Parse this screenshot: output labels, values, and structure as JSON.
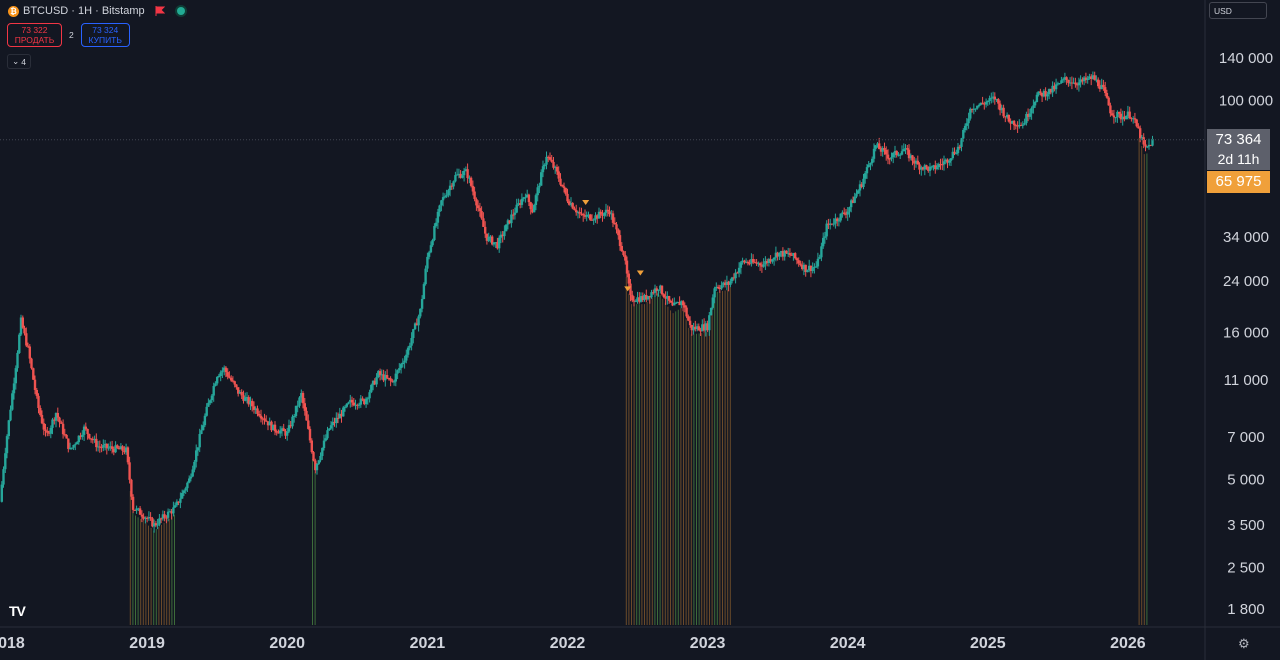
{
  "header": {
    "symbol": "BTCUSD · 1H · Bitstamp",
    "coin_icon": "bitcoin-icon",
    "flag_icon": "red-flag-icon",
    "status_icon": "market-status-dot-icon",
    "sell_price": "73 322",
    "sell_label": "ПРОДАТЬ",
    "spread": "2",
    "buy_price": "73 324",
    "buy_label": "КУПИТЬ",
    "indicators_count": "4",
    "currency": "USD"
  },
  "price_labels": {
    "current": "73 364",
    "countdown": "2d 11h",
    "alert": "65 975"
  },
  "colors": {
    "background": "#131722",
    "up": "#26a69a",
    "down": "#ef5350",
    "current_price_label": "#5d606b",
    "alert_label": "#f0a03a"
  },
  "chart_data": {
    "type": "candlestick",
    "title": "BTCUSD · 1H · Bitstamp",
    "y_scale": "log",
    "ylim": [
      1500,
      200000
    ],
    "xlim": [
      2017.95,
      2026.55
    ],
    "y_ticks": [
      {
        "value": 140000,
        "label": "140 000"
      },
      {
        "value": 100000,
        "label": "100 000"
      },
      {
        "value": 34000,
        "label": "34 000"
      },
      {
        "value": 24000,
        "label": "24 000"
      },
      {
        "value": 16000,
        "label": "16 000"
      },
      {
        "value": 11000,
        "label": "11 000"
      },
      {
        "value": 7000,
        "label": "7 000"
      },
      {
        "value": 5000,
        "label": "5 000"
      },
      {
        "value": 3500,
        "label": "3 500"
      },
      {
        "value": 2500,
        "label": "2 500"
      },
      {
        "value": 1800,
        "label": "1 800"
      }
    ],
    "x_ticks": [
      {
        "value": 2018,
        "label": "2018"
      },
      {
        "value": 2019,
        "label": "2019"
      },
      {
        "value": 2020,
        "label": "2020"
      },
      {
        "value": 2021,
        "label": "2021"
      },
      {
        "value": 2022,
        "label": "2022"
      },
      {
        "value": 2023,
        "label": "2023"
      },
      {
        "value": 2024,
        "label": "2024"
      },
      {
        "value": 2025,
        "label": "2025"
      },
      {
        "value": 2026,
        "label": "2026"
      }
    ],
    "price_path": [
      [
        2017.95,
        4200
      ],
      [
        2017.99,
        6500
      ],
      [
        2018.05,
        11000
      ],
      [
        2018.1,
        17500
      ],
      [
        2018.15,
        14000
      ],
      [
        2018.22,
        9000
      ],
      [
        2018.28,
        7000
      ],
      [
        2018.35,
        8500
      ],
      [
        2018.45,
        6300
      ],
      [
        2018.55,
        7500
      ],
      [
        2018.65,
        6500
      ],
      [
        2018.75,
        6400
      ],
      [
        2018.85,
        6300
      ],
      [
        2018.9,
        4000
      ],
      [
        2018.97,
        3800
      ],
      [
        2019.05,
        3500
      ],
      [
        2019.2,
        4000
      ],
      [
        2019.3,
        5000
      ],
      [
        2019.42,
        8500
      ],
      [
        2019.5,
        11500
      ],
      [
        2019.55,
        12000
      ],
      [
        2019.65,
        10000
      ],
      [
        2019.8,
        8500
      ],
      [
        2019.9,
        7500
      ],
      [
        2020.0,
        7200
      ],
      [
        2020.1,
        9800
      ],
      [
        2020.2,
        5500
      ],
      [
        2020.3,
        7500
      ],
      [
        2020.45,
        9200
      ],
      [
        2020.55,
        9300
      ],
      [
        2020.65,
        11500
      ],
      [
        2020.75,
        10800
      ],
      [
        2020.85,
        13500
      ],
      [
        2020.95,
        19000
      ],
      [
        2021.0,
        29000
      ],
      [
        2021.1,
        45000
      ],
      [
        2021.2,
        55000
      ],
      [
        2021.28,
        57000
      ],
      [
        2021.35,
        45000
      ],
      [
        2021.42,
        34000
      ],
      [
        2021.5,
        32000
      ],
      [
        2021.6,
        40000
      ],
      [
        2021.7,
        48000
      ],
      [
        2021.75,
        42000
      ],
      [
        2021.85,
        65000
      ],
      [
        2021.92,
        57000
      ],
      [
        2022.0,
        46000
      ],
      [
        2022.1,
        40000
      ],
      [
        2022.2,
        40000
      ],
      [
        2022.3,
        42000
      ],
      [
        2022.4,
        30000
      ],
      [
        2022.45,
        21000
      ],
      [
        2022.55,
        21000
      ],
      [
        2022.65,
        23000
      ],
      [
        2022.75,
        19500
      ],
      [
        2022.82,
        20500
      ],
      [
        2022.88,
        16500
      ],
      [
        2023.0,
        16800
      ],
      [
        2023.05,
        23000
      ],
      [
        2023.15,
        23500
      ],
      [
        2023.25,
        28000
      ],
      [
        2023.4,
        27500
      ],
      [
        2023.5,
        30000
      ],
      [
        2023.6,
        29500
      ],
      [
        2023.7,
        26500
      ],
      [
        2023.78,
        27000
      ],
      [
        2023.85,
        37000
      ],
      [
        2024.0,
        42000
      ],
      [
        2024.1,
        52000
      ],
      [
        2024.2,
        70000
      ],
      [
        2024.3,
        64000
      ],
      [
        2024.4,
        68000
      ],
      [
        2024.5,
        60000
      ],
      [
        2024.6,
        58000
      ],
      [
        2024.7,
        62000
      ],
      [
        2024.8,
        70000
      ],
      [
        2024.88,
        95000
      ],
      [
        2024.95,
        97000
      ],
      [
        2025.05,
        102000
      ],
      [
        2025.15,
        85000
      ],
      [
        2025.25,
        83000
      ],
      [
        2025.35,
        104000
      ],
      [
        2025.45,
        108000
      ],
      [
        2025.55,
        118000
      ],
      [
        2025.65,
        115000
      ],
      [
        2025.75,
        120000
      ],
      [
        2025.82,
        110000
      ],
      [
        2025.88,
        91000
      ],
      [
        2025.95,
        88000
      ],
      [
        2026.02,
        90000
      ],
      [
        2026.08,
        78000
      ],
      [
        2026.12,
        68000
      ],
      [
        2026.15,
        70000
      ],
      [
        2026.18,
        73364
      ]
    ],
    "current_price": 73364,
    "alert_price": 65975,
    "markers": [
      {
        "x": 2022.13,
        "price": 44500
      },
      {
        "x": 2022.43,
        "price": 22500
      },
      {
        "x": 2022.52,
        "price": 25500
      }
    ],
    "volume_zones": [
      [
        2018.88,
        2019.21
      ],
      [
        2020.18,
        2020.21
      ],
      [
        2022.42,
        2023.18
      ],
      [
        2026.08,
        2026.14
      ]
    ],
    "grid": false
  }
}
